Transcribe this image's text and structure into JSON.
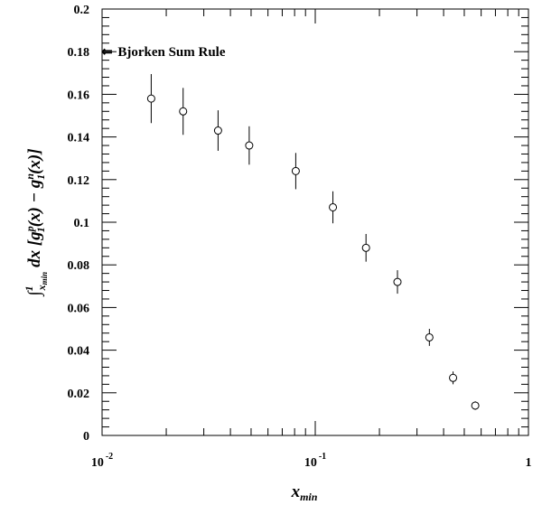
{
  "chart_data": {
    "type": "scatter",
    "title": "",
    "xlabel": {
      "base": "x",
      "sub": "min"
    },
    "ylabel": {
      "integral": "∫",
      "upper_limit": "1",
      "lower_var": "x",
      "lower_sub": "min",
      "integrand": "dx [g",
      "p_super": "p",
      "p_sub": "1",
      "mid": "(x) − g",
      "n_super": "n",
      "n_sub": "1",
      "tail": "(x)]"
    },
    "x_scale": "log",
    "xlim": [
      0.01,
      1
    ],
    "ylim": [
      0,
      0.2
    ],
    "grid": false,
    "y_ticks": [
      "0",
      "0.02",
      "0.04",
      "0.06",
      "0.08",
      "0.1",
      "0.12",
      "0.14",
      "0.16",
      "0.18",
      "0.2"
    ],
    "x_ticks": [
      {
        "base": "10",
        "exp": "-2"
      },
      {
        "base": "10",
        "exp": "-1"
      },
      {
        "base": "1",
        "exp": ""
      }
    ],
    "annotation": {
      "arrow": "⇐",
      "text": "Bjorken Sum Rule",
      "y": 0.18
    },
    "points": [
      {
        "x": 0.017,
        "y": 0.158,
        "err": 0.0115
      },
      {
        "x": 0.024,
        "y": 0.152,
        "err": 0.011
      },
      {
        "x": 0.035,
        "y": 0.143,
        "err": 0.0095
      },
      {
        "x": 0.049,
        "y": 0.136,
        "err": 0.009
      },
      {
        "x": 0.081,
        "y": 0.124,
        "err": 0.0085
      },
      {
        "x": 0.121,
        "y": 0.107,
        "err": 0.0075
      },
      {
        "x": 0.173,
        "y": 0.088,
        "err": 0.0065
      },
      {
        "x": 0.243,
        "y": 0.072,
        "err": 0.0055
      },
      {
        "x": 0.343,
        "y": 0.046,
        "err": 0.004
      },
      {
        "x": 0.443,
        "y": 0.027,
        "err": 0.003
      },
      {
        "x": 0.563,
        "y": 0.014,
        "err": 0.002
      }
    ]
  }
}
